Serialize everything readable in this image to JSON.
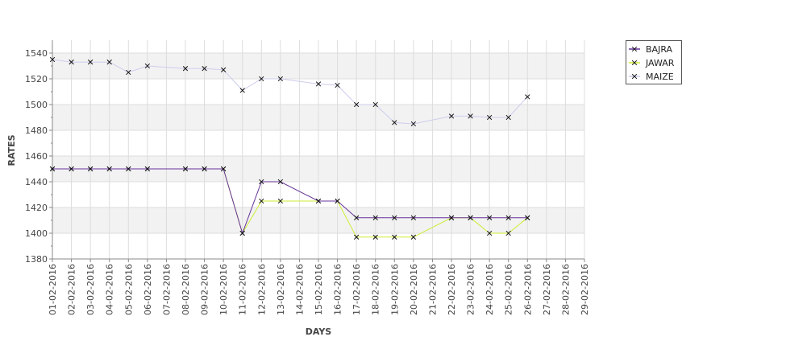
{
  "chart_data": {
    "type": "line",
    "title": "",
    "xlabel": "DAYS",
    "ylabel": "RATES",
    "ylim": [
      1380,
      1550
    ],
    "yticks": [
      1380,
      1400,
      1420,
      1440,
      1460,
      1480,
      1500,
      1520,
      1540
    ],
    "grid": true,
    "legend_position": "top-right",
    "x": [
      "01-02-2016",
      "02-02-2016",
      "03-02-2016",
      "04-02-2016",
      "05-02-2016",
      "06-02-2016",
      "07-02-2016",
      "08-02-2016",
      "09-02-2016",
      "10-02-2016",
      "11-02-2016",
      "12-02-2016",
      "13-02-2016",
      "14-02-2016",
      "15-02-2016",
      "16-02-2016",
      "17-02-2016",
      "18-02-2016",
      "19-02-2016",
      "20-02-2016",
      "21-02-2016",
      "22-02-2016",
      "23-02-2016",
      "24-02-2016",
      "25-02-2016",
      "26-02-2016",
      "27-02-2016",
      "28-02-2016",
      "29-02-2016"
    ],
    "series": [
      {
        "name": "BAJRA",
        "color": "#663399",
        "values": [
          1450,
          1450,
          1450,
          1450,
          1450,
          1450,
          null,
          1450,
          1450,
          1450,
          1400,
          1440,
          1440,
          null,
          1425,
          1425,
          1412,
          1412,
          1412,
          1412,
          null,
          1412,
          1412,
          1412,
          1412,
          1412,
          null,
          null,
          null
        ]
      },
      {
        "name": "JAWAR",
        "color": "#ccee33",
        "values": [
          1450,
          1450,
          1450,
          1450,
          1450,
          1450,
          null,
          1450,
          1450,
          1450,
          1400,
          1425,
          1425,
          null,
          1425,
          1425,
          1397,
          1397,
          1397,
          1397,
          null,
          1412,
          1412,
          1400,
          1400,
          1412,
          null,
          null,
          null
        ]
      },
      {
        "name": "MAIZE",
        "color": "#ccccee",
        "values": [
          1535,
          1533,
          1533,
          1533,
          1525,
          1530,
          null,
          1528,
          1528,
          1527,
          1511,
          1520,
          1520,
          null,
          1516,
          1515,
          1500,
          1500,
          1486,
          1485,
          null,
          1491,
          1491,
          1490,
          1490,
          1506,
          null,
          null,
          null
        ]
      }
    ]
  }
}
